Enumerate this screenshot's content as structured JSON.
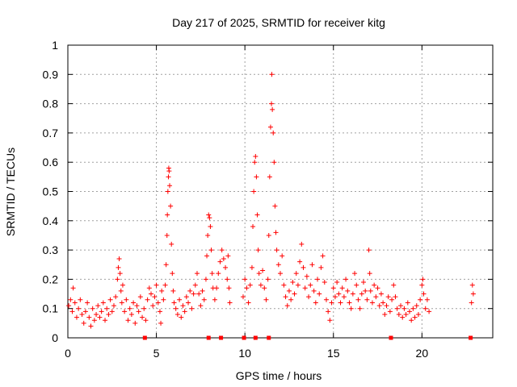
{
  "chart_data": {
    "type": "scatter",
    "title": "Day 217 of 2025, SRMTID for receiver kitg",
    "xlabel": "GPS time / hours",
    "ylabel": "SRMTID / TECUs",
    "xlim": [
      0,
      24
    ],
    "ylim": [
      0,
      1
    ],
    "x_ticks": [
      0,
      5,
      10,
      15,
      20
    ],
    "x_tick_labels": [
      "0",
      "5",
      "10",
      "15",
      "20"
    ],
    "y_ticks": [
      0,
      0.1,
      0.2,
      0.3,
      0.4,
      0.5,
      0.6,
      0.7,
      0.8,
      0.9,
      1
    ],
    "y_tick_labels": [
      "0",
      "0.1",
      "0.2",
      "0.3",
      "0.4",
      "0.5",
      "0.6",
      "0.7",
      "0.8",
      "0.9",
      "1"
    ],
    "grid": true,
    "marker": "+",
    "marker_color": "#ff0000",
    "series": [
      {
        "name": "SRMTID",
        "points": [
          [
            0.05,
            0.11
          ],
          [
            0.15,
            0.13
          ],
          [
            0.25,
            0.09
          ],
          [
            0.3,
            0.17
          ],
          [
            0.4,
            0.12
          ],
          [
            0.5,
            0.07
          ],
          [
            0.6,
            0.1
          ],
          [
            0.7,
            0.13
          ],
          [
            0.8,
            0.08
          ],
          [
            0.9,
            0.05
          ],
          [
            1.0,
            0.09
          ],
          [
            1.1,
            0.12
          ],
          [
            1.2,
            0.07
          ],
          [
            1.3,
            0.04
          ],
          [
            1.4,
            0.1
          ],
          [
            1.5,
            0.06
          ],
          [
            1.6,
            0.08
          ],
          [
            1.7,
            0.11
          ],
          [
            1.8,
            0.07
          ],
          [
            1.9,
            0.09
          ],
          [
            2.0,
            0.12
          ],
          [
            2.1,
            0.06
          ],
          [
            2.2,
            0.1
          ],
          [
            2.3,
            0.08
          ],
          [
            2.4,
            0.13
          ],
          [
            2.5,
            0.09
          ],
          [
            2.6,
            0.11
          ],
          [
            2.7,
            0.14
          ],
          [
            2.8,
            0.2
          ],
          [
            2.85,
            0.24
          ],
          [
            2.9,
            0.27
          ],
          [
            2.95,
            0.22
          ],
          [
            3.0,
            0.16
          ],
          [
            3.05,
            0.12
          ],
          [
            3.1,
            0.18
          ],
          [
            3.2,
            0.09
          ],
          [
            3.3,
            0.13
          ],
          [
            3.4,
            0.06
          ],
          [
            3.5,
            0.1
          ],
          [
            3.6,
            0.08
          ],
          [
            3.7,
            0.12
          ],
          [
            3.8,
            0.05
          ],
          [
            3.9,
            0.11
          ],
          [
            4.0,
            0.09
          ],
          [
            4.1,
            0.14
          ],
          [
            4.2,
            0.07
          ],
          [
            4.3,
            0.1
          ],
          [
            4.4,
            0.06
          ],
          [
            4.5,
            0.13
          ],
          [
            4.6,
            0.17
          ],
          [
            4.7,
            0.15
          ],
          [
            4.8,
            0.11
          ],
          [
            4.9,
            0.14
          ],
          [
            5.0,
            0.18
          ],
          [
            5.1,
            0.12
          ],
          [
            5.2,
            0.09
          ],
          [
            5.25,
            0.05
          ],
          [
            5.3,
            0.16
          ],
          [
            5.4,
            0.13
          ],
          [
            5.5,
            0.18
          ],
          [
            5.55,
            0.25
          ],
          [
            5.6,
            0.35
          ],
          [
            5.62,
            0.42
          ],
          [
            5.65,
            0.5
          ],
          [
            5.68,
            0.55
          ],
          [
            5.7,
            0.58
          ],
          [
            5.72,
            0.57
          ],
          [
            5.75,
            0.52
          ],
          [
            5.8,
            0.45
          ],
          [
            5.85,
            0.32
          ],
          [
            5.9,
            0.22
          ],
          [
            5.95,
            0.16
          ],
          [
            6.0,
            0.12
          ],
          [
            6.1,
            0.1
          ],
          [
            6.2,
            0.08
          ],
          [
            6.3,
            0.13
          ],
          [
            6.4,
            0.07
          ],
          [
            6.5,
            0.11
          ],
          [
            6.6,
            0.09
          ],
          [
            6.7,
            0.14
          ],
          [
            6.8,
            0.12
          ],
          [
            6.9,
            0.16
          ],
          [
            7.0,
            0.1
          ],
          [
            7.1,
            0.15
          ],
          [
            7.2,
            0.18
          ],
          [
            7.3,
            0.22
          ],
          [
            7.4,
            0.15
          ],
          [
            7.5,
            0.11
          ],
          [
            7.6,
            0.16
          ],
          [
            7.7,
            0.13
          ],
          [
            7.8,
            0.2
          ],
          [
            7.85,
            0.28
          ],
          [
            7.9,
            0.35
          ],
          [
            7.95,
            0.42
          ],
          [
            8.0,
            0.41
          ],
          [
            8.05,
            0.38
          ],
          [
            8.1,
            0.3
          ],
          [
            8.15,
            0.22
          ],
          [
            8.2,
            0.17
          ],
          [
            8.3,
            0.13
          ],
          [
            8.4,
            0.17
          ],
          [
            8.5,
            0.22
          ],
          [
            8.6,
            0.26
          ],
          [
            8.7,
            0.3
          ],
          [
            8.8,
            0.27
          ],
          [
            8.9,
            0.24
          ],
          [
            9.0,
            0.2
          ],
          [
            9.05,
            0.28
          ],
          [
            9.1,
            0.17
          ],
          [
            9.15,
            0.12
          ],
          [
            9.9,
            0.14
          ],
          [
            10.0,
            0.2
          ],
          [
            10.1,
            0.17
          ],
          [
            10.2,
            0.12
          ],
          [
            10.3,
            0.18
          ],
          [
            10.4,
            0.24
          ],
          [
            10.45,
            0.38
          ],
          [
            10.5,
            0.5
          ],
          [
            10.55,
            0.6
          ],
          [
            10.6,
            0.62
          ],
          [
            10.65,
            0.55
          ],
          [
            10.7,
            0.42
          ],
          [
            10.75,
            0.3
          ],
          [
            10.8,
            0.22
          ],
          [
            10.9,
            0.18
          ],
          [
            11.0,
            0.23
          ],
          [
            11.1,
            0.17
          ],
          [
            11.2,
            0.13
          ],
          [
            11.3,
            0.2
          ],
          [
            11.35,
            0.35
          ],
          [
            11.4,
            0.55
          ],
          [
            11.45,
            0.72
          ],
          [
            11.5,
            0.8
          ],
          [
            11.52,
            0.9
          ],
          [
            11.55,
            0.78
          ],
          [
            11.6,
            0.7
          ],
          [
            11.65,
            0.6
          ],
          [
            11.7,
            0.45
          ],
          [
            11.75,
            0.36
          ],
          [
            11.8,
            0.3
          ],
          [
            11.9,
            0.25
          ],
          [
            12.0,
            0.22
          ],
          [
            12.1,
            0.28
          ],
          [
            12.2,
            0.18
          ],
          [
            12.3,
            0.14
          ],
          [
            12.4,
            0.11
          ],
          [
            12.5,
            0.16
          ],
          [
            12.6,
            0.13
          ],
          [
            12.7,
            0.19
          ],
          [
            12.8,
            0.15
          ],
          [
            12.9,
            0.22
          ],
          [
            13.0,
            0.18
          ],
          [
            13.1,
            0.26
          ],
          [
            13.2,
            0.32
          ],
          [
            13.3,
            0.24
          ],
          [
            13.4,
            0.17
          ],
          [
            13.5,
            0.21
          ],
          [
            13.6,
            0.14
          ],
          [
            13.7,
            0.18
          ],
          [
            13.8,
            0.25
          ],
          [
            13.9,
            0.16
          ],
          [
            14.0,
            0.12
          ],
          [
            14.1,
            0.2
          ],
          [
            14.2,
            0.15
          ],
          [
            14.3,
            0.24
          ],
          [
            14.4,
            0.28
          ],
          [
            14.5,
            0.19
          ],
          [
            14.6,
            0.13
          ],
          [
            14.7,
            0.09
          ],
          [
            14.8,
            0.06
          ],
          [
            14.9,
            0.12
          ],
          [
            15.0,
            0.17
          ],
          [
            15.1,
            0.14
          ],
          [
            15.2,
            0.19
          ],
          [
            15.3,
            0.15
          ],
          [
            15.4,
            0.12
          ],
          [
            15.5,
            0.17
          ],
          [
            15.6,
            0.14
          ],
          [
            15.7,
            0.2
          ],
          [
            15.8,
            0.16
          ],
          [
            15.9,
            0.12
          ],
          [
            16.0,
            0.1
          ],
          [
            16.1,
            0.15
          ],
          [
            16.2,
            0.22
          ],
          [
            16.3,
            0.18
          ],
          [
            16.4,
            0.13
          ],
          [
            16.5,
            0.1
          ],
          [
            16.6,
            0.15
          ],
          [
            16.7,
            0.19
          ],
          [
            16.8,
            0.16
          ],
          [
            16.9,
            0.13
          ],
          [
            17.0,
            0.3
          ],
          [
            17.05,
            0.22
          ],
          [
            17.1,
            0.16
          ],
          [
            17.2,
            0.12
          ],
          [
            17.3,
            0.18
          ],
          [
            17.4,
            0.14
          ],
          [
            17.5,
            0.17
          ],
          [
            17.6,
            0.11
          ],
          [
            17.7,
            0.15
          ],
          [
            17.8,
            0.12
          ],
          [
            17.9,
            0.08
          ],
          [
            18.0,
            0.11
          ],
          [
            18.1,
            0.14
          ],
          [
            18.2,
            0.09
          ],
          [
            18.3,
            0.13
          ],
          [
            18.4,
            0.18
          ],
          [
            18.5,
            0.14
          ],
          [
            18.6,
            0.1
          ],
          [
            18.7,
            0.08
          ],
          [
            18.8,
            0.11
          ],
          [
            18.9,
            0.07
          ],
          [
            19.0,
            0.1
          ],
          [
            19.1,
            0.08
          ],
          [
            19.2,
            0.12
          ],
          [
            19.3,
            0.09
          ],
          [
            19.4,
            0.06
          ],
          [
            19.5,
            0.1
          ],
          [
            19.6,
            0.07
          ],
          [
            19.7,
            0.11
          ],
          [
            19.8,
            0.08
          ],
          [
            19.9,
            0.13
          ],
          [
            20.0,
            0.18
          ],
          [
            20.05,
            0.2
          ],
          [
            20.1,
            0.15
          ],
          [
            20.2,
            0.1
          ],
          [
            20.3,
            0.13
          ],
          [
            20.4,
            0.09
          ],
          [
            22.8,
            0.12
          ],
          [
            22.85,
            0.18
          ],
          [
            22.9,
            0.15
          ]
        ]
      }
    ],
    "gap_markers_x": [
      4.35,
      7.95,
      8.65,
      9.95,
      10.6,
      11.35,
      18.25,
      22.75
    ]
  }
}
